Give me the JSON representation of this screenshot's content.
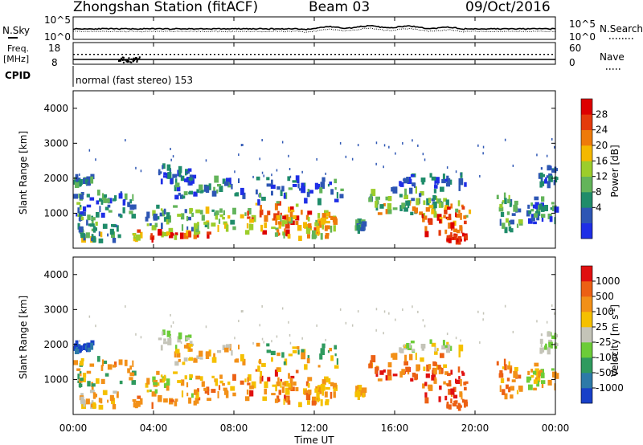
{
  "header": {
    "station": "Zhongshan Station (fitACF)",
    "beam": "Beam 03",
    "date": "09/Oct/2016"
  },
  "chart_data": [
    {
      "type": "line",
      "panel": "noise",
      "left_label": "N.Sky",
      "right_label": "N.Search",
      "left_ticks": [
        "10^5",
        "10^0"
      ],
      "right_ticks": [
        "10^5",
        "10^0"
      ]
    },
    {
      "type": "line",
      "panel": "freq-nave",
      "left_label_1": "Freq.",
      "left_label_2": "[MHz]",
      "right_label": "Nave",
      "left_ticks": [
        "18",
        "8"
      ],
      "right_ticks": [
        "60",
        "0"
      ]
    },
    {
      "type": "table",
      "panel": "cpid",
      "label": "CPID",
      "segments": [
        {
          "start": "00:00",
          "end": "00:00",
          "text": "normal (fast stereo) 153"
        }
      ]
    },
    {
      "type": "heatmap",
      "panel": "power",
      "ylabel": "Slant Range [km]",
      "yticks": [
        "4000",
        "3000",
        "2000",
        "1000"
      ],
      "colorbar": {
        "label": "Power [dB]",
        "ticks": [
          "28",
          "24",
          "20",
          "16",
          "12",
          "8",
          "4"
        ]
      }
    },
    {
      "type": "heatmap",
      "panel": "velocity",
      "ylabel": "Slant Range [km]",
      "yticks": [
        "4000",
        "3000",
        "2000",
        "1000"
      ],
      "colorbar": {
        "label": "Velocity [m s",
        "label_sup": "-1",
        "label_end": "]",
        "ticks": [
          "1000",
          "500",
          "100",
          "25",
          "-25",
          "-100",
          "-500",
          "-1000"
        ]
      }
    }
  ],
  "xaxis": {
    "label": "Time UT",
    "ticks": [
      "00:00",
      "04:00",
      "08:00",
      "12:00",
      "16:00",
      "20:00",
      "00:00"
    ]
  },
  "colors": {
    "power_scale": [
      "#1e2ee6",
      "#2d56b4",
      "#1f8c6a",
      "#63b45a",
      "#9ccd2b",
      "#f4b800",
      "#ee7a0b",
      "#e43a0c",
      "#dd0000"
    ],
    "velocity_scale": [
      "#1840c8",
      "#2d7aa8",
      "#2f9a5e",
      "#6ccc38",
      "#c4c4b8",
      "#f5c000",
      "#f29018",
      "#ec6014",
      "#e01010"
    ]
  }
}
